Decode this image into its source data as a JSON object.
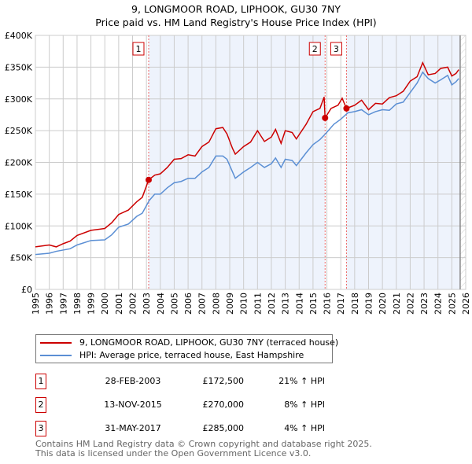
{
  "chart_data": {
    "type": "line",
    "title": "9, LONGMOOR ROAD, LIPHOOK, GU30 7NY",
    "subtitle": "Price paid vs. HM Land Registry's House Price Index (HPI)",
    "xlim": [
      1995,
      2026
    ],
    "ylim": [
      0,
      400000
    ],
    "x_ticks": [
      "1995",
      "1996",
      "1997",
      "1998",
      "1999",
      "2000",
      "2001",
      "2002",
      "2003",
      "2004",
      "2005",
      "2006",
      "2007",
      "2008",
      "2009",
      "2010",
      "2011",
      "2012",
      "2013",
      "2014",
      "2015",
      "2016",
      "2017",
      "2018",
      "2019",
      "2020",
      "2021",
      "2022",
      "2023",
      "2024",
      "2025",
      "2026"
    ],
    "y_ticks": [
      {
        "v": 0,
        "label": "£0"
      },
      {
        "v": 50000,
        "label": "£50K"
      },
      {
        "v": 100000,
        "label": "£100K"
      },
      {
        "v": 150000,
        "label": "£150K"
      },
      {
        "v": 200000,
        "label": "£200K"
      },
      {
        "v": 250000,
        "label": "£250K"
      },
      {
        "v": 300000,
        "label": "£300K"
      },
      {
        "v": 350000,
        "label": "£350K"
      },
      {
        "v": 400000,
        "label": "£400K"
      }
    ],
    "grid": true,
    "data_end": 2025.6,
    "series": [
      {
        "name": "9, LONGMOOR ROAD, LIPHOOK, GU30 7NY (terraced house)",
        "color": "#cc0000",
        "x": [
          1995,
          1996,
          1996.5,
          1997,
          1997.5,
          1998,
          1999,
          2000,
          2000.5,
          2001,
          2001.7,
          2002.3,
          2002.7,
          2003.16,
          2003.6,
          2004,
          2004.5,
          2005,
          2005.5,
          2006,
          2006.5,
          2007,
          2007.5,
          2008,
          2008.5,
          2008.8,
          2009.2,
          2009.4,
          2010,
          2010.5,
          2011,
          2011.5,
          2012,
          2012.3,
          2012.7,
          2013,
          2013.5,
          2013.8,
          2014.5,
          2015,
          2015.5,
          2015.8,
          2015.87,
          2016.3,
          2016.8,
          2017.1,
          2017.41,
          2018,
          2018.5,
          2019,
          2019.5,
          2020,
          2020.5,
          2021,
          2021.5,
          2022,
          2022.5,
          2022.9,
          2023.3,
          2023.8,
          2024.2,
          2024.7,
          2025,
          2025.3,
          2025.5
        ],
        "y": [
          67000,
          70000,
          67000,
          72000,
          76000,
          85000,
          93000,
          96000,
          105000,
          118000,
          125000,
          138000,
          145000,
          172500,
          180000,
          182000,
          192000,
          205000,
          206000,
          212000,
          210000,
          225000,
          232000,
          253000,
          255000,
          245000,
          222000,
          213000,
          225000,
          232000,
          250000,
          233000,
          240000,
          252000,
          230000,
          250000,
          247000,
          237000,
          260000,
          280000,
          285000,
          303000,
          270000,
          285000,
          290000,
          301000,
          285000,
          290000,
          298000,
          283000,
          293000,
          292000,
          302000,
          305000,
          312000,
          328000,
          335000,
          357000,
          338000,
          340000,
          348000,
          350000,
          336000,
          340000,
          346000
        ]
      },
      {
        "name": "HPI: Average price, terraced house, East Hampshire",
        "color": "#5b8fd4",
        "x": [
          1995,
          1996,
          1996.5,
          1997.5,
          1998,
          1999,
          2000,
          2000.5,
          2001,
          2001.7,
          2002.3,
          2002.7,
          2003.2,
          2003.6,
          2004,
          2004.5,
          2005,
          2005.5,
          2006,
          2006.5,
          2007,
          2007.5,
          2008,
          2008.5,
          2008.8,
          2009.2,
          2009.4,
          2010,
          2010.5,
          2011,
          2011.5,
          2012,
          2012.3,
          2012.7,
          2013,
          2013.5,
          2013.8,
          2014.5,
          2015,
          2015.5,
          2015.9,
          2016.5,
          2017,
          2017.5,
          2018,
          2018.5,
          2019,
          2019.5,
          2020,
          2020.5,
          2021,
          2021.5,
          2022,
          2022.5,
          2022.9,
          2023.3,
          2023.8,
          2024.2,
          2024.7,
          2025,
          2025.3,
          2025.5
        ],
        "y": [
          55000,
          57000,
          60000,
          64000,
          70000,
          77000,
          78000,
          86000,
          98000,
          103000,
          115000,
          120000,
          140000,
          150000,
          150000,
          160000,
          168000,
          170000,
          175000,
          175000,
          185000,
          192000,
          210000,
          210000,
          205000,
          185000,
          175000,
          185000,
          192000,
          200000,
          192000,
          198000,
          207000,
          192000,
          205000,
          203000,
          195000,
          215000,
          228000,
          236000,
          245000,
          260000,
          268000,
          278000,
          280000,
          283000,
          275000,
          280000,
          283000,
          282000,
          292000,
          295000,
          310000,
          325000,
          342000,
          332000,
          325000,
          330000,
          337000,
          322000,
          327000,
          332000
        ]
      }
    ],
    "sales": [
      {
        "label": "1",
        "x": 2003.16,
        "y": 172500
      },
      {
        "label": "2",
        "x": 2015.87,
        "y": 270000
      },
      {
        "label": "3",
        "x": 2017.41,
        "y": 285000
      }
    ],
    "legend": "below"
  },
  "title": "9, LONGMOOR ROAD, LIPHOOK, GU30 7NY",
  "subtitle": "Price paid vs. HM Land Registry's House Price Index (HPI)",
  "legend": {
    "red": "9, LONGMOOR ROAD, LIPHOOK, GU30 7NY (terraced house)",
    "blue": "HPI: Average price, terraced house, East Hampshire"
  },
  "table": [
    {
      "n": "1",
      "date": "28-FEB-2003",
      "price": "£172,500",
      "hpi": "21% ↑ HPI"
    },
    {
      "n": "2",
      "date": "13-NOV-2015",
      "price": "£270,000",
      "hpi": "8% ↑ HPI"
    },
    {
      "n": "3",
      "date": "31-MAY-2017",
      "price": "£285,000",
      "hpi": "4% ↑ HPI"
    }
  ],
  "footer": [
    "Contains HM Land Registry data © Crown copyright and database right 2025.",
    "This data is licensed under the Open Government Licence v3.0."
  ]
}
